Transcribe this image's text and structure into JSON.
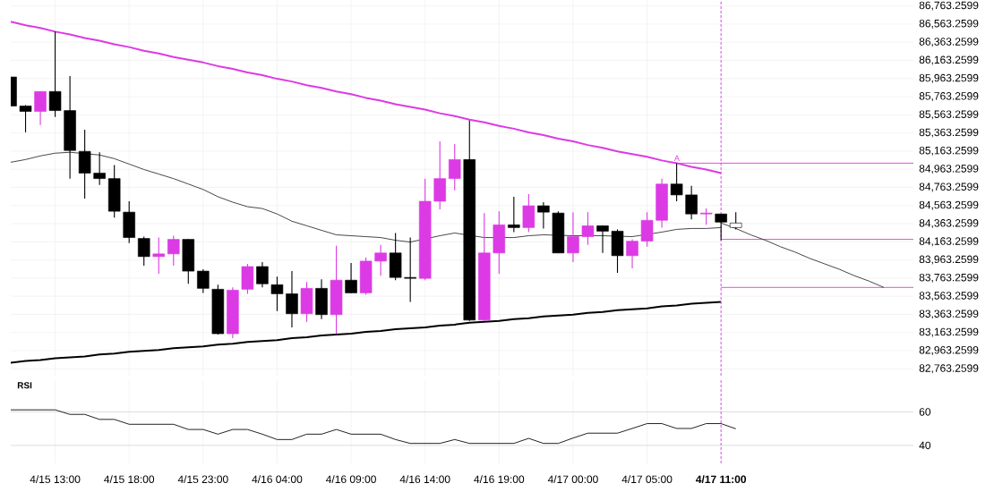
{
  "chart_data": [
    {
      "type": "candlestick",
      "categories": [
        null,
        null,
        null,
        "4/15 13:00",
        null,
        null,
        null,
        null,
        "4/15 18:00",
        null,
        null,
        null,
        null,
        "4/15 23:00",
        null,
        null,
        null,
        null,
        "4/16 04:00",
        null,
        null,
        null,
        null,
        "4/16 09:00",
        null,
        null,
        null,
        null,
        "4/16 14:00",
        null,
        null,
        null,
        null,
        "4/16 19:00",
        null,
        null,
        null,
        null,
        "4/17 00:00",
        null,
        null,
        null,
        null,
        "4/17 05:00",
        null,
        null,
        null,
        null,
        "4/17 11:00",
        null,
        null,
        null,
        null,
        null,
        null,
        null,
        null,
        null,
        null,
        null,
        null,
        null
      ],
      "ohlc": [
        [
          85980,
          85980,
          85660,
          85660
        ],
        [
          85660,
          85670,
          85370,
          85600
        ],
        [
          85600,
          85820,
          85450,
          85820
        ],
        [
          85820,
          86480,
          85540,
          85610
        ],
        [
          85610,
          85990,
          84860,
          85170
        ],
        [
          85160,
          85400,
          84640,
          84920
        ],
        [
          84920,
          85150,
          84790,
          84860
        ],
        [
          84860,
          85010,
          84430,
          84500
        ],
        [
          84490,
          84610,
          84150,
          84210
        ],
        [
          84200,
          84220,
          83900,
          84000
        ],
        [
          84000,
          84210,
          83810,
          84030
        ],
        [
          84030,
          84230,
          83900,
          84190
        ],
        [
          84190,
          84190,
          83700,
          83840
        ],
        [
          83840,
          83860,
          83600,
          83650
        ],
        [
          83640,
          83690,
          83140,
          83150
        ],
        [
          83150,
          83660,
          83100,
          83630
        ],
        [
          83640,
          83920,
          83590,
          83890
        ],
        [
          83890,
          83940,
          83660,
          83700
        ],
        [
          83690,
          83780,
          83400,
          83590
        ],
        [
          83590,
          83840,
          83220,
          83370
        ],
        [
          83370,
          83720,
          83280,
          83650
        ],
        [
          83650,
          83750,
          83310,
          83360
        ],
        [
          83360,
          84120,
          83150,
          83740
        ],
        [
          83740,
          83930,
          83600,
          83600
        ],
        [
          83600,
          83990,
          83580,
          83950
        ],
        [
          83950,
          84130,
          83790,
          84040
        ],
        [
          84040,
          84260,
          83740,
          83770
        ],
        [
          83770,
          84210,
          83500,
          83760
        ],
        [
          83760,
          84860,
          83740,
          84610
        ],
        [
          84610,
          85270,
          84520,
          84860
        ],
        [
          84860,
          85240,
          84730,
          85070
        ],
        [
          85070,
          85500,
          83290,
          83300
        ],
        [
          83300,
          84480,
          83290,
          84040
        ],
        [
          84040,
          84500,
          83810,
          84350
        ],
        [
          84350,
          84660,
          84270,
          84320
        ],
        [
          84320,
          84690,
          84270,
          84560
        ],
        [
          84560,
          84600,
          84310,
          84490
        ],
        [
          84480,
          84500,
          84040,
          84040
        ],
        [
          84040,
          84490,
          83940,
          84220
        ],
        [
          84220,
          84490,
          84130,
          84340
        ],
        [
          84340,
          84340,
          84040,
          84280
        ],
        [
          84280,
          84300,
          83820,
          84010
        ],
        [
          84010,
          84190,
          83870,
          84170
        ],
        [
          84170,
          84490,
          84110,
          84400
        ],
        [
          84400,
          84860,
          84320,
          84800
        ],
        [
          84800,
          85030,
          84610,
          84680
        ],
        [
          84680,
          84780,
          84410,
          84470
        ],
        [
          84470,
          84530,
          84350,
          84480
        ],
        [
          84470,
          84470,
          84180,
          84380
        ],
        [
          84320,
          84490,
          84300,
          84370
        ],
        null,
        null,
        null,
        null,
        null,
        null,
        null,
        null,
        null,
        null,
        null,
        null
      ],
      "colors": [
        "#000000",
        "#000000",
        "#dc3ae4",
        "#000000",
        "#000000",
        "#000000",
        "#000000",
        "#000000",
        "#000000",
        "#000000",
        "#dc3ae4",
        "#dc3ae4",
        "#000000",
        "#000000",
        "#000000",
        "#dc3ae4",
        "#dc3ae4",
        "#000000",
        "#000000",
        "#000000",
        "#dc3ae4",
        "#000000",
        "#dc3ae4",
        "#000000",
        "#dc3ae4",
        "#dc3ae4",
        "#000000",
        "#000000",
        "#dc3ae4",
        "#dc3ae4",
        "#dc3ae4",
        "#000000",
        "#dc3ae4",
        "#dc3ae4",
        "#000000",
        "#dc3ae4",
        "#000000",
        "#000000",
        "#dc3ae4",
        "#dc3ae4",
        "#000000",
        "#000000",
        "#dc3ae4",
        "#dc3ae4",
        "#dc3ae4",
        "#000000",
        "#000000",
        "#dc3ae4",
        "#000000",
        "#ffffff",
        null,
        null,
        null,
        null,
        null,
        null,
        null,
        null,
        null,
        null,
        null,
        null
      ],
      "series": [
        {
          "type": "line",
          "color": "#333333",
          "values": [
            85040,
            85070,
            85110,
            85140,
            85150,
            null,
            85120,
            85080,
            85020,
            84960,
            84910,
            84860,
            84800,
            84740,
            84660,
            84600,
            84550,
            84530,
            84470,
            84390,
            84340,
            84290,
            84240,
            84230,
            84220,
            84210,
            84180,
            84160,
            null,
            84230,
            84260,
            null,
            84210,
            null,
            84210,
            84230,
            84240,
            null,
            84230,
            null,
            84230,
            null,
            84220,
            null,
            84270,
            84300,
            84310,
            84310,
            84320,
            null,
            null,
            null,
            null,
            null,
            null,
            null,
            null,
            null,
            null,
            null,
            null,
            null
          ]
        },
        {
          "type": "line",
          "color": "#dc3ae4",
          "values": [
            86590,
            86550,
            86520,
            86480,
            86450,
            86410,
            86380,
            86340,
            86310,
            86270,
            86240,
            86200,
            86170,
            86140,
            86100,
            86070,
            86030,
            86000,
            85960,
            85930,
            85890,
            85860,
            85820,
            85790,
            85750,
            85720,
            85680,
            85650,
            85620,
            85580,
            85550,
            85510,
            85480,
            85440,
            85410,
            85370,
            85340,
            85300,
            85270,
            85230,
            85200,
            85160,
            85130,
            85100,
            85060,
            85030,
            84990,
            84960,
            84920,
            null,
            null,
            null,
            null,
            null,
            null,
            null,
            null,
            null,
            null,
            null,
            null,
            null
          ]
        },
        {
          "type": "line",
          "color": "#000000",
          "values": [
            82830,
            82850,
            82860,
            82880,
            82890,
            82900,
            82920,
            82930,
            82950,
            82960,
            82970,
            82990,
            83000,
            83010,
            83030,
            83040,
            83060,
            83070,
            83080,
            83100,
            83110,
            83130,
            83140,
            83150,
            83170,
            83180,
            83200,
            83210,
            83220,
            83240,
            83250,
            83270,
            83280,
            83290,
            83310,
            83320,
            83340,
            83350,
            83360,
            83380,
            83390,
            83410,
            83420,
            83430,
            83450,
            83460,
            83480,
            83490,
            83500,
            null,
            null,
            null,
            null,
            null,
            null,
            null,
            null,
            null,
            null,
            null,
            null,
            null
          ]
        },
        {
          "type": "line",
          "color": "#dc3ae4",
          "values": [
            null,
            null,
            null,
            null,
            null,
            null,
            null,
            null,
            null,
            null,
            null,
            null,
            null,
            null,
            null,
            null,
            null,
            null,
            null,
            null,
            null,
            null,
            null,
            null,
            null,
            null,
            null,
            null,
            null,
            null,
            null,
            null,
            null,
            null,
            null,
            null,
            null,
            null,
            null,
            null,
            null,
            null,
            null,
            null,
            null,
            85030,
            85030,
            85030,
            85030,
            85030,
            85030,
            85030,
            85030,
            85030,
            85030,
            85030,
            85030,
            85030,
            85030,
            85030,
            85030,
            85030
          ]
        },
        {
          "type": "line",
          "color": "#dc3ae4",
          "values": [
            null,
            null,
            null,
            null,
            null,
            null,
            null,
            null,
            null,
            null,
            null,
            null,
            null,
            null,
            null,
            null,
            null,
            null,
            null,
            null,
            null,
            null,
            null,
            null,
            null,
            null,
            null,
            null,
            null,
            null,
            null,
            null,
            null,
            null,
            null,
            null,
            null,
            null,
            null,
            null,
            null,
            null,
            null,
            null,
            null,
            null,
            null,
            null,
            84190,
            84190,
            84190,
            84190,
            84190,
            84190,
            84190,
            84190,
            84190,
            84190,
            84190,
            84190,
            84190,
            84190
          ]
        },
        {
          "type": "line",
          "color": "#dc3ae4",
          "values": [
            null,
            null,
            null,
            null,
            null,
            null,
            null,
            null,
            null,
            null,
            null,
            null,
            null,
            null,
            null,
            null,
            null,
            null,
            null,
            null,
            null,
            null,
            null,
            null,
            null,
            null,
            null,
            null,
            null,
            null,
            null,
            null,
            null,
            null,
            null,
            null,
            null,
            null,
            null,
            null,
            null,
            null,
            null,
            null,
            null,
            null,
            null,
            null,
            83660,
            83660,
            83660,
            83660,
            83660,
            83660,
            83660,
            83660,
            83660,
            83660,
            83660,
            83660,
            83660,
            83660
          ]
        },
        {
          "type": "line",
          "color": "#333333",
          "values": [
            null,
            null,
            null,
            null,
            null,
            null,
            null,
            null,
            null,
            null,
            null,
            null,
            null,
            null,
            null,
            null,
            null,
            null,
            null,
            null,
            null,
            null,
            null,
            null,
            null,
            null,
            null,
            null,
            null,
            null,
            null,
            null,
            null,
            null,
            null,
            null,
            null,
            null,
            null,
            null,
            null,
            null,
            null,
            null,
            null,
            null,
            null,
            null,
            84370,
            84310,
            84240,
            84180,
            84110,
            84050,
            83980,
            83920,
            83860,
            83790,
            83730,
            83660,
            null,
            null
          ]
        }
      ],
      "ylim": [
        82687,
        86829
      ],
      "yticks": [
        {
          "value": 82763.2599,
          "label": "82,763.2599"
        },
        {
          "value": 82963.2599,
          "label": "82,963.2599"
        },
        {
          "value": 83163.2599,
          "label": "83,163.2599"
        },
        {
          "value": 83363.2599,
          "label": "83,363.2599"
        },
        {
          "value": 83563.2599,
          "label": "83,563.2599"
        },
        {
          "value": 83763.2599,
          "label": "83,763.2599"
        },
        {
          "value": 83963.2599,
          "label": "83,963.2599"
        },
        {
          "value": 84163.2599,
          "label": "84,163.2599"
        },
        {
          "value": 84363.2599,
          "label": "84,363.2599"
        },
        {
          "value": 84563.2599,
          "label": "84,563.2599"
        },
        {
          "value": 84763.2599,
          "label": "84,763.2599"
        },
        {
          "value": 84963.2599,
          "label": "84,963.2599"
        },
        {
          "value": 85163.2599,
          "label": "85,163.2599"
        },
        {
          "value": 85363.2599,
          "label": "85,363.2599"
        },
        {
          "value": 85563.2599,
          "label": "85,563.2599"
        },
        {
          "value": 85763.2599,
          "label": "85,763.2599"
        },
        {
          "value": 85963.2599,
          "label": "85,963.2599"
        },
        {
          "value": 86163.2599,
          "label": "86,163.2599"
        },
        {
          "value": 86363.2599,
          "label": "86,363.2599"
        },
        {
          "value": 86563.2599,
          "label": "86,563.2599"
        },
        {
          "value": 86763.2599,
          "label": "86,763.2599"
        }
      ],
      "ref_lines": [
        {
          "axis": "x",
          "value": "4/17 11:00",
          "color": "#dc3ae4",
          "line_style": "dashed"
        }
      ],
      "annotations": [
        "A"
      ],
      "grid": true,
      "tick_labels": "y"
    },
    {
      "type": "line",
      "title": "RSI",
      "categories": [
        null,
        null,
        null,
        "4/15 13:00",
        null,
        null,
        null,
        null,
        "4/15 18:00",
        null,
        null,
        null,
        null,
        "4/15 23:00",
        null,
        null,
        null,
        null,
        "4/16 04:00",
        null,
        null,
        null,
        null,
        "4/16 09:00",
        null,
        null,
        null,
        null,
        "4/16 14:00",
        null,
        null,
        null,
        null,
        "4/16 19:00",
        null,
        null,
        null,
        null,
        "4/17 00:00",
        null,
        null,
        null,
        null,
        "4/17 05:00",
        null,
        null,
        null,
        null,
        "4/17 11:00",
        null,
        null,
        null,
        null,
        null,
        null,
        null,
        null,
        null,
        null,
        null,
        null,
        null
      ],
      "values": [
        61.2,
        61.2,
        61.2,
        61.2,
        58.5,
        58.5,
        55.5,
        55.5,
        52.6,
        52.6,
        52.6,
        52.6,
        49.5,
        49.5,
        46.7,
        49.5,
        49.5,
        46.7,
        43.5,
        43.5,
        46.7,
        46.7,
        49.5,
        46.7,
        46.7,
        46.7,
        43.5,
        41.2,
        41.2,
        41.2,
        43.5,
        41.2,
        41.2,
        41.2,
        41.2,
        44.2,
        41.2,
        41.2,
        44.4,
        47.3,
        47.3,
        47.3,
        50.1,
        53,
        53,
        50.1,
        50.1,
        53,
        53,
        49.9,
        null,
        null,
        null,
        null,
        null,
        null,
        null,
        null,
        null,
        null,
        null,
        null
      ],
      "color": "#222222",
      "ylim": [
        29.3,
        78.9
      ],
      "yticks": [
        40,
        60
      ],
      "ref_lines": [
        {
          "axis": "x",
          "value": "4/17 11:00",
          "color": "#dc3ae4",
          "line_style": "dashed"
        }
      ],
      "grid": true
    }
  ]
}
